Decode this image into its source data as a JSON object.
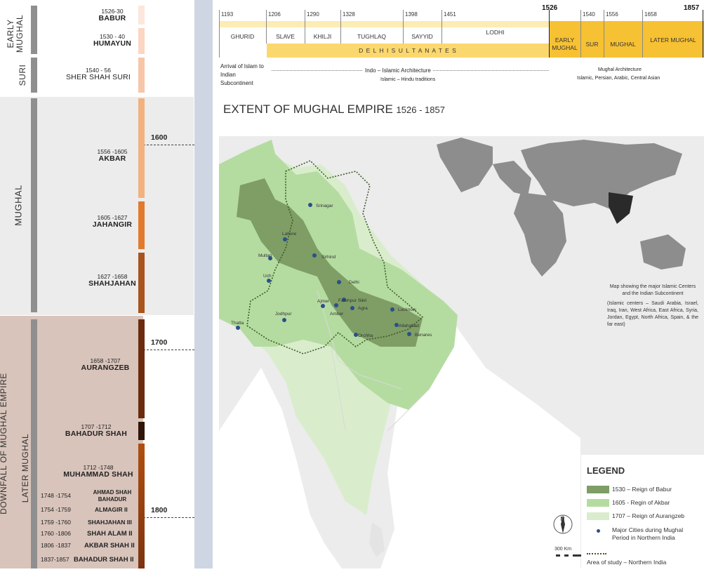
{
  "left_panel": {
    "sections": {
      "early_mughal": "EARLY MUGHAL",
      "suri": "SURI",
      "mughal": "MUGHAL",
      "downfall": "DOWNFALL OF MUGHAL EMPIRE",
      "later_mughal": "LATER MUGHAL"
    },
    "years": {
      "y1600": "1600",
      "y1700": "1700",
      "y1800": "1800"
    },
    "rulers": [
      {
        "dates": "1526-30",
        "name": "BABUR"
      },
      {
        "dates": "1530 - 40",
        "name": "HUMAYUN"
      },
      {
        "dates": "1540 - 56",
        "name": "SHER SHAH SURI"
      },
      {
        "dates": "1556 -1605",
        "name": "AKBAR"
      },
      {
        "dates": "1605 -1627",
        "name": "JAHANGIR"
      },
      {
        "dates": "1627 -1658",
        "name": "SHAHJAHAN"
      },
      {
        "dates": "1658 -1707",
        "name": "AURANGZEB"
      },
      {
        "dates": "1707 -1712",
        "name": "BAHADUR SHAH"
      },
      {
        "dates": "1712 -1748",
        "name": "MUHAMMAD SHAH"
      },
      {
        "dates": "1748 -1754",
        "name": "AHMAD SHAH BAHADUR"
      },
      {
        "dates": "1754 -1759",
        "name": "ALMAGIR II"
      },
      {
        "dates": "1759 -1760",
        "name": "SHAHJAHAN III"
      },
      {
        "dates": "1760 -1806",
        "name": "SHAH ALAM II"
      },
      {
        "dates": "1806 -1837",
        "name": "AKBAR SHAH II"
      },
      {
        "dates": "1837-1857",
        "name": "BAHADUR SHAH II"
      }
    ],
    "swatch_colors": [
      "#fde6dc",
      "#fbd6c3",
      "#f7c6a8",
      "#f1b27f",
      "#e07a2e",
      "#a8541d",
      "#6a2c0d",
      "#2f140a",
      "#b04f10"
    ]
  },
  "timeline": {
    "years": {
      "y1193": "1193",
      "y1206": "1206",
      "y1290": "1290",
      "y1328": "1328",
      "y1398": "1398",
      "y1451": "1451",
      "y1526": "1526",
      "y1540": "1540",
      "y1556": "1556",
      "y1658": "1658",
      "y1857": "1857"
    },
    "periods": {
      "ghurid": "GHURID",
      "slave": "SLAVE",
      "khilji": "KHILJI",
      "tughlaq": "TUGHLAQ",
      "sayyid": "SAYYID",
      "lodhi": "LODHI",
      "early_mughal": "EARLY MUGHAL",
      "sur": "SUR",
      "mughal": "MUGHAL",
      "later_mughal": "LATER MUGHAL"
    },
    "delhi_sultanates": "D E L H I S U L T A N A T E S",
    "arrival": "Arrival of Islam to Indian Subcontinent",
    "indo_islamic": "Indo – Islamic Architecture",
    "islamic_hindu": "Islamic – Hindu traditions",
    "mughal_arch": "Mughal Architecture",
    "mughal_arch_sub": "Islamic, Persian, Arabic, Central Asian",
    "colors": {
      "band_light": "#fdecb3",
      "band_main": "#fbd86e",
      "band_dark": "#f6c133"
    }
  },
  "map": {
    "title": "EXTENT OF MUGHAL EMPIRE",
    "title_years": "1526 - 1857",
    "inset_note": "Map showing the major Islamic Centers and the Indian Subcontinent",
    "inset_note_sub": "(Islamic centers – Saudi Arabia, Israel, Iraq, Iran, West Africa, East Africa, Syria, Jordan, Egypt, North Africa, Spain, & the far east)",
    "cities": [
      {
        "name": "Srinagar"
      },
      {
        "name": "Lahore"
      },
      {
        "name": "Multan"
      },
      {
        "name": "Sirhind"
      },
      {
        "name": "Uch"
      },
      {
        "name": "Delhi"
      },
      {
        "name": "Fatehpur Sikri"
      },
      {
        "name": "Ajmer"
      },
      {
        "name": "Agra"
      },
      {
        "name": "Amber"
      },
      {
        "name": "Lucknow"
      },
      {
        "name": "Jodhpur"
      },
      {
        "name": "Thatta"
      },
      {
        "name": "Allahabad"
      },
      {
        "name": "Orchha"
      },
      {
        "name": "Benares"
      }
    ],
    "compass": "N",
    "scale": "300 Km",
    "colors": {
      "babur": "#7e9e66",
      "akbar": "#b5dca0",
      "aurangzeb": "#d9edcd",
      "land": "#ececec",
      "water": "#ffffff",
      "world": "#8d8d8d",
      "india_dark": "#2a2a2a",
      "city": "#2b4f8a"
    }
  },
  "legend": {
    "title": "LEGEND",
    "babur": "1530 – Reign of Babur",
    "akbar": "1605 - Regin of Akbar",
    "aurangzeb": "1707 – Reign of Aurangzeb",
    "cities": "Major Cities during Mughal Period in Northern India",
    "study": "Area of study – Northern India"
  }
}
